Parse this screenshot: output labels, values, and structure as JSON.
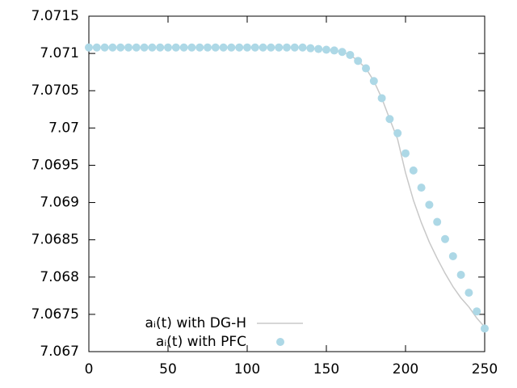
{
  "chart_data": {
    "type": "line",
    "x": [
      0,
      5,
      10,
      15,
      20,
      25,
      30,
      35,
      40,
      45,
      50,
      55,
      60,
      65,
      70,
      75,
      80,
      85,
      90,
      95,
      100,
      105,
      110,
      115,
      120,
      125,
      130,
      135,
      140,
      145,
      150,
      155,
      160,
      165,
      170,
      175,
      180,
      185,
      190,
      195,
      200,
      205,
      210,
      215,
      220,
      225,
      230,
      235,
      240,
      245,
      250
    ],
    "series": [
      {
        "name": "aᵢ(t) with DG-H",
        "color": "#c8c8c8",
        "style": "line",
        "values": [
          7.07108,
          7.07108,
          7.07108,
          7.07108,
          7.07108,
          7.07108,
          7.07108,
          7.07108,
          7.07108,
          7.07108,
          7.07108,
          7.07108,
          7.07108,
          7.07108,
          7.07108,
          7.07108,
          7.07108,
          7.07108,
          7.07108,
          7.07108,
          7.07108,
          7.07108,
          7.07108,
          7.07108,
          7.07108,
          7.07108,
          7.07108,
          7.07108,
          7.07107,
          7.07106,
          7.07105,
          7.07104,
          7.07102,
          7.07098,
          7.0709,
          7.0708,
          7.07063,
          7.0704,
          7.07012,
          7.06985,
          7.0694,
          7.06903,
          7.06873,
          7.06847,
          7.06825,
          7.06805,
          7.06787,
          7.06772,
          7.0676,
          7.06745,
          7.06733
        ]
      },
      {
        "name": "aᵢ(t) with PFC",
        "color": "#add8e6",
        "style": "points",
        "values": [
          7.07108,
          7.07108,
          7.07108,
          7.07108,
          7.07108,
          7.07108,
          7.07108,
          7.07108,
          7.07108,
          7.07108,
          7.07108,
          7.07108,
          7.07108,
          7.07108,
          7.07108,
          7.07108,
          7.07108,
          7.07108,
          7.07108,
          7.07108,
          7.07108,
          7.07108,
          7.07108,
          7.07108,
          7.07108,
          7.07108,
          7.07108,
          7.07108,
          7.07107,
          7.07106,
          7.07105,
          7.07104,
          7.07102,
          7.07098,
          7.0709,
          7.0708,
          7.07063,
          7.0704,
          7.07012,
          7.06993,
          7.06966,
          7.06943,
          7.0692,
          7.06897,
          7.06874,
          7.06851,
          7.06828,
          7.06803,
          7.06779,
          7.06754,
          7.06731
        ]
      }
    ],
    "xlim": [
      0,
      250
    ],
    "xticks": [
      0,
      50,
      100,
      150,
      200,
      250
    ],
    "ylim": [
      7.067,
      7.0715
    ],
    "yticks": [
      7.0715,
      7.071,
      7.0705,
      7.07,
      7.0695,
      7.069,
      7.0685,
      7.068,
      7.0675,
      7.067
    ],
    "grid": false,
    "legend": "bottom-left"
  }
}
